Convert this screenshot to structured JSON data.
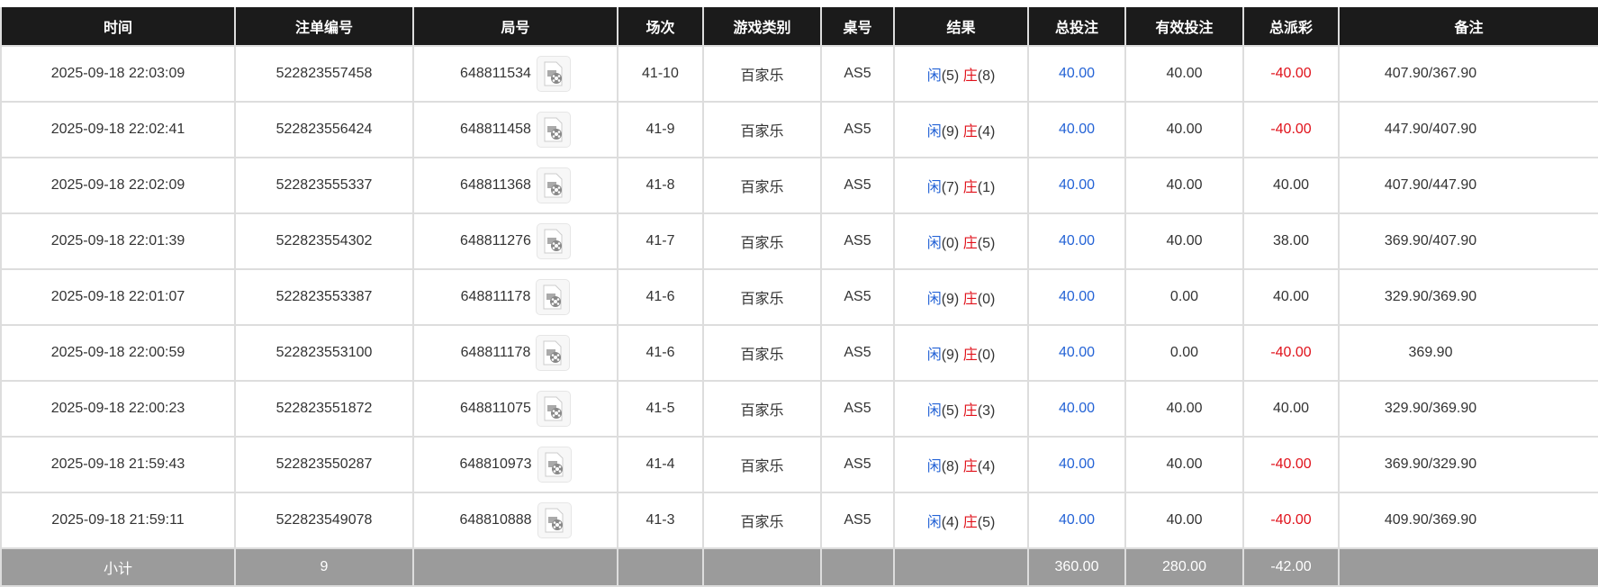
{
  "columns": [
    "时间",
    "注单编号",
    "局号",
    "场次",
    "游戏类别",
    "桌号",
    "结果",
    "总投注",
    "有效投注",
    "总派彩",
    "备注"
  ],
  "result_labels": {
    "player": "闲",
    "banker": "庄"
  },
  "colors": {
    "header_bg": "#1b1b1b",
    "subtotal_bg": "#9b9b9b",
    "blue": "#2463d6",
    "red": "#e0121b"
  },
  "rows": [
    {
      "time": "2025-09-18 22:03:09",
      "bet_id": "522823557458",
      "round": "648811534",
      "session": "41-10",
      "game": "百家乐",
      "table": "AS5",
      "player": "(5)",
      "banker": "(8)",
      "total_bet": "40.00",
      "valid_bet": "40.00",
      "payout": "-40.00",
      "payout_negative": true,
      "remark": "407.90/367.90"
    },
    {
      "time": "2025-09-18 22:02:41",
      "bet_id": "522823556424",
      "round": "648811458",
      "session": "41-9",
      "game": "百家乐",
      "table": "AS5",
      "player": "(9)",
      "banker": "(4)",
      "total_bet": "40.00",
      "valid_bet": "40.00",
      "payout": "-40.00",
      "payout_negative": true,
      "remark": "447.90/407.90"
    },
    {
      "time": "2025-09-18 22:02:09",
      "bet_id": "522823555337",
      "round": "648811368",
      "session": "41-8",
      "game": "百家乐",
      "table": "AS5",
      "player": "(7)",
      "banker": "(1)",
      "total_bet": "40.00",
      "valid_bet": "40.00",
      "payout": "40.00",
      "payout_negative": false,
      "remark": "407.90/447.90"
    },
    {
      "time": "2025-09-18 22:01:39",
      "bet_id": "522823554302",
      "round": "648811276",
      "session": "41-7",
      "game": "百家乐",
      "table": "AS5",
      "player": "(0)",
      "banker": "(5)",
      "total_bet": "40.00",
      "valid_bet": "40.00",
      "payout": "38.00",
      "payout_negative": false,
      "remark": "369.90/407.90"
    },
    {
      "time": "2025-09-18 22:01:07",
      "bet_id": "522823553387",
      "round": "648811178",
      "session": "41-6",
      "game": "百家乐",
      "table": "AS5",
      "player": "(9)",
      "banker": "(0)",
      "total_bet": "40.00",
      "valid_bet": "0.00",
      "payout": "40.00",
      "payout_negative": false,
      "remark": "329.90/369.90"
    },
    {
      "time": "2025-09-18 22:00:59",
      "bet_id": "522823553100",
      "round": "648811178",
      "session": "41-6",
      "game": "百家乐",
      "table": "AS5",
      "player": "(9)",
      "banker": "(0)",
      "total_bet": "40.00",
      "valid_bet": "0.00",
      "payout": "-40.00",
      "payout_negative": true,
      "remark": "369.90"
    },
    {
      "time": "2025-09-18 22:00:23",
      "bet_id": "522823551872",
      "round": "648811075",
      "session": "41-5",
      "game": "百家乐",
      "table": "AS5",
      "player": "(5)",
      "banker": "(3)",
      "total_bet": "40.00",
      "valid_bet": "40.00",
      "payout": "40.00",
      "payout_negative": false,
      "remark": "329.90/369.90"
    },
    {
      "time": "2025-09-18 21:59:43",
      "bet_id": "522823550287",
      "round": "648810973",
      "session": "41-4",
      "game": "百家乐",
      "table": "AS5",
      "player": "(8)",
      "banker": "(4)",
      "total_bet": "40.00",
      "valid_bet": "40.00",
      "payout": "-40.00",
      "payout_negative": true,
      "remark": "369.90/329.90"
    },
    {
      "time": "2025-09-18 21:59:11",
      "bet_id": "522823549078",
      "round": "648810888",
      "session": "41-3",
      "game": "百家乐",
      "table": "AS5",
      "player": "(4)",
      "banker": "(5)",
      "total_bet": "40.00",
      "valid_bet": "40.00",
      "payout": "-40.00",
      "payout_negative": true,
      "remark": "409.90/369.90"
    }
  ],
  "subtotal": {
    "label": "小计",
    "count": "9",
    "total_bet": "360.00",
    "valid_bet": "280.00",
    "payout": "-42.00"
  }
}
